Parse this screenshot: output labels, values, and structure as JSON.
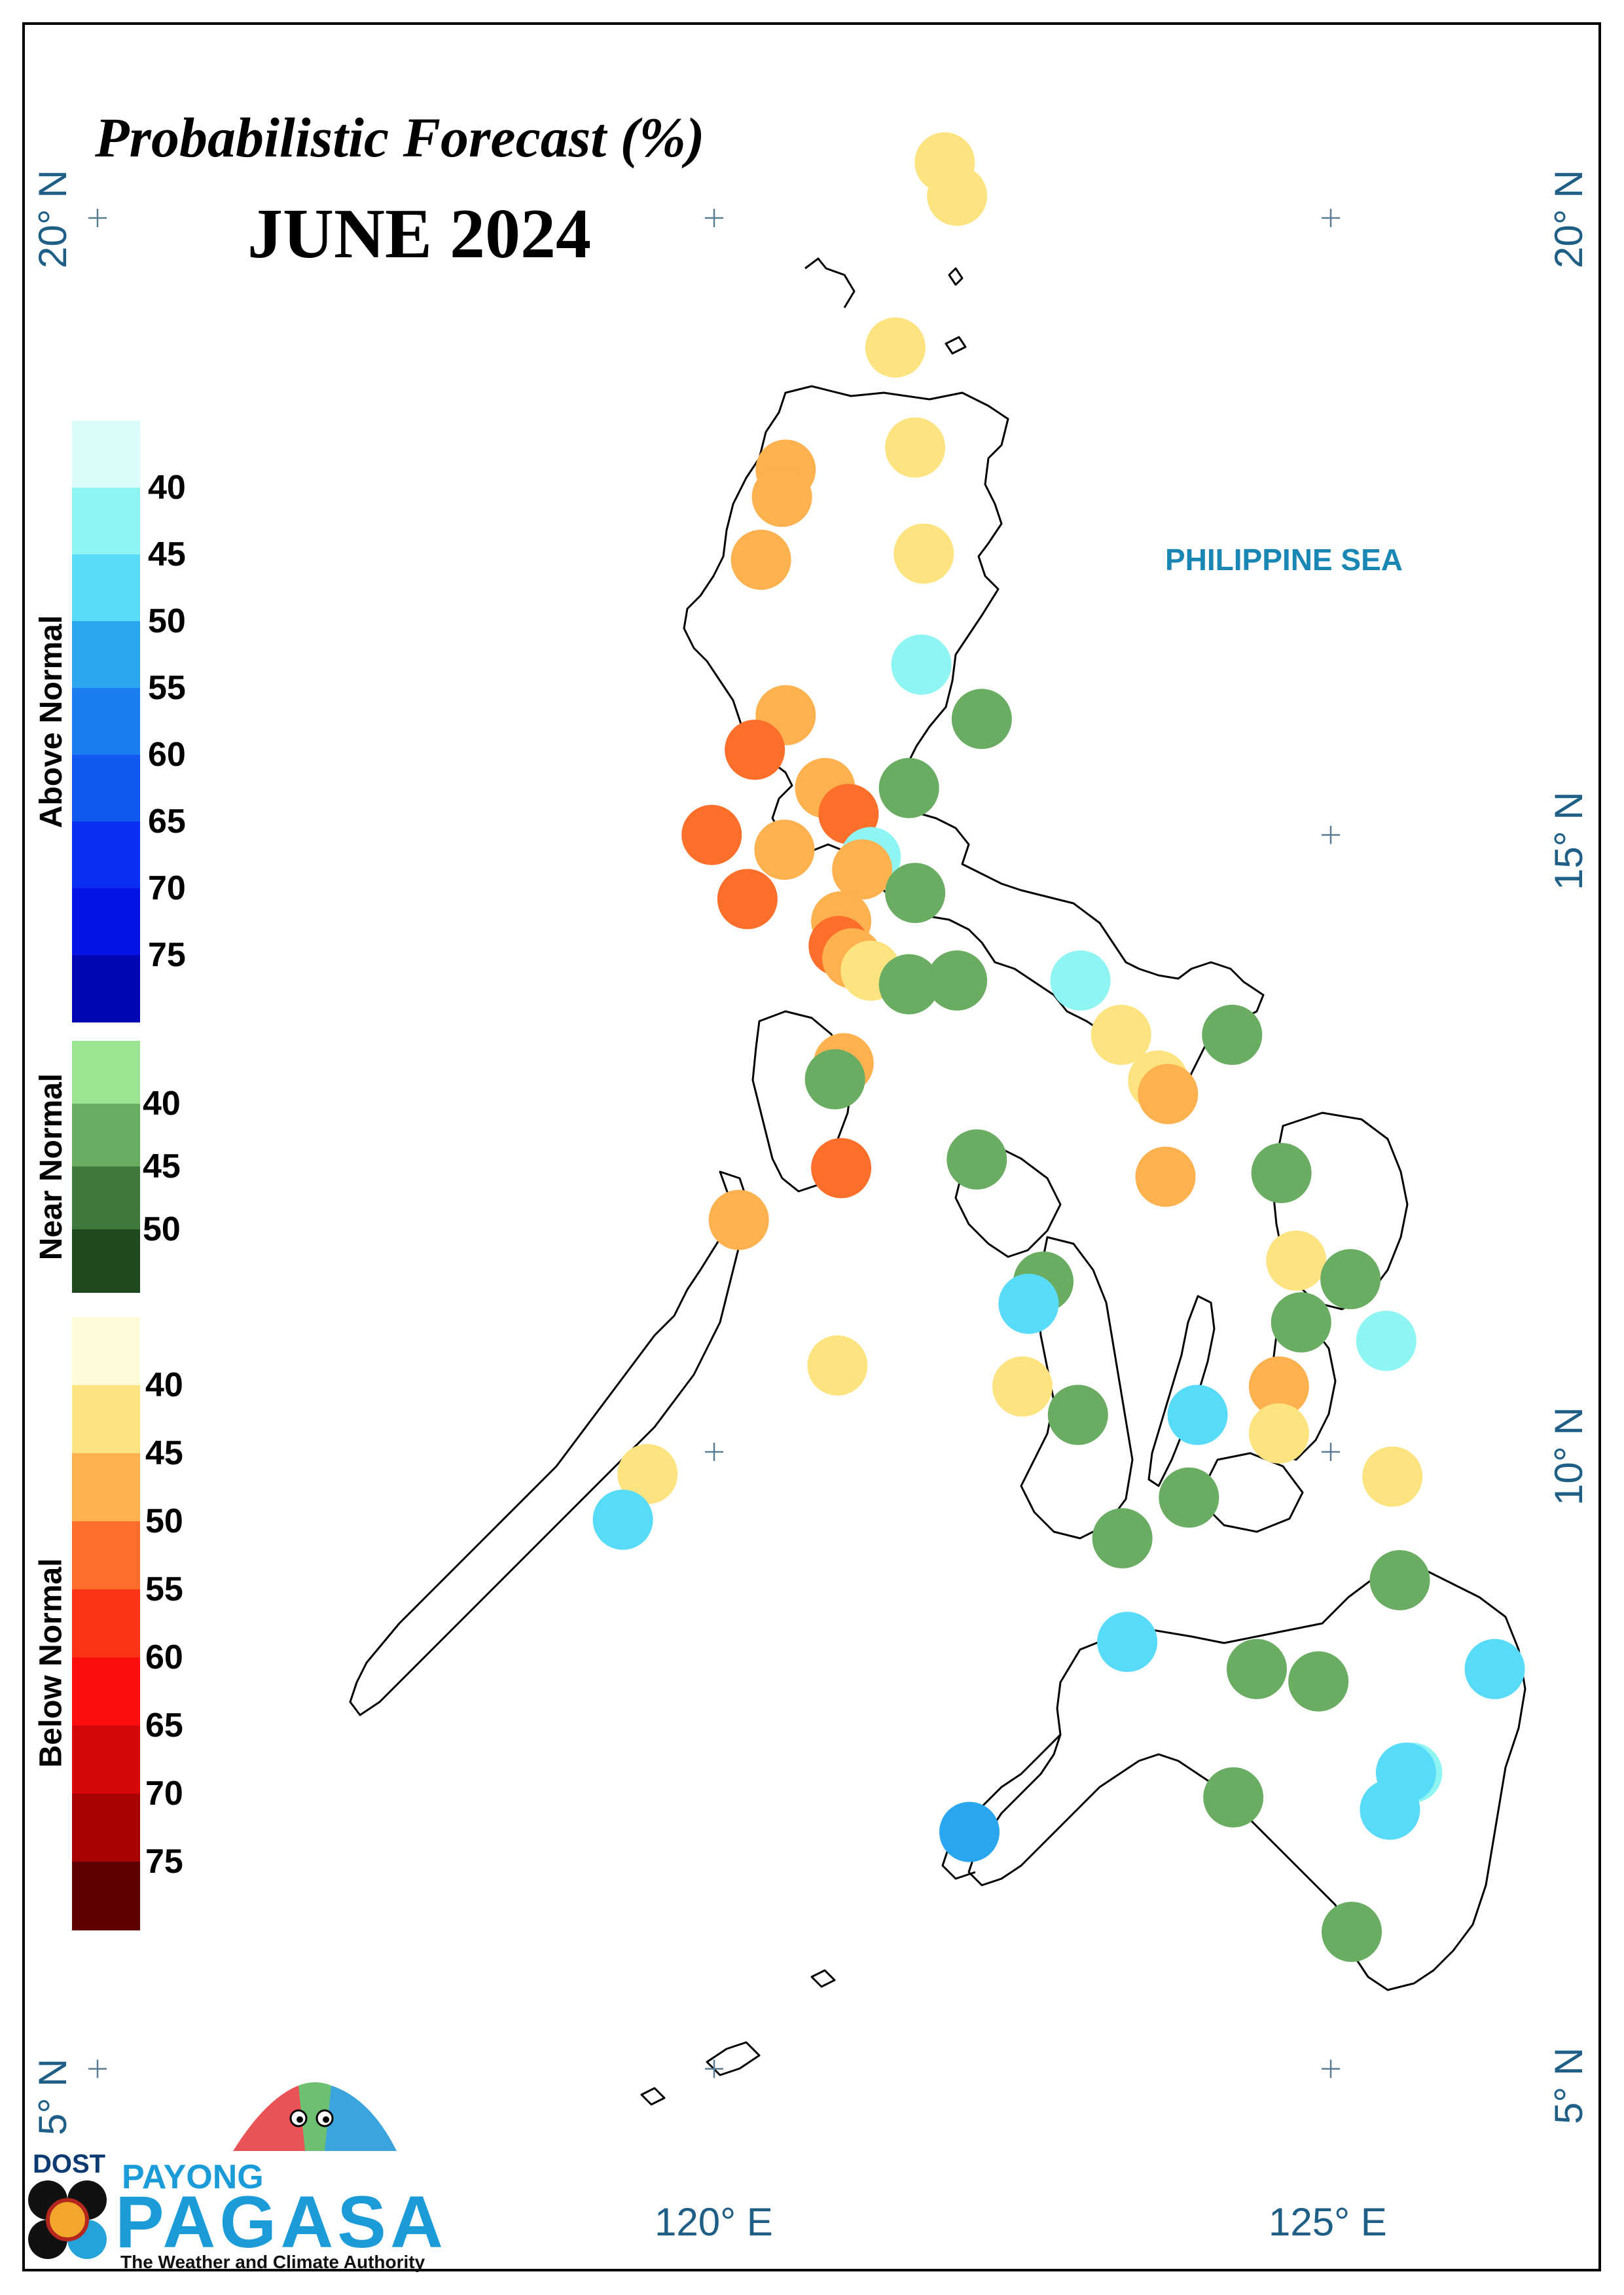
{
  "title": "Probabilistic Forecast (%)",
  "subtitle": "JUNE 2024",
  "sea_label": "PHILIPPINE SEA",
  "lat_labels": [
    "20° N",
    "15° N",
    "10° N",
    "5° N"
  ],
  "lon_labels": [
    "120° E",
    "125° E"
  ],
  "legend": {
    "above_normal": {
      "label": "Above Normal",
      "colors": [
        "#dcfcfb",
        "#8ef5f2",
        "#58dbf8",
        "#2aa6f0",
        "#1a7ef2",
        "#1158f0",
        "#0a2ef2",
        "#0414e6",
        "#0007b2"
      ],
      "ticks": [
        "40",
        "45",
        "50",
        "55",
        "60",
        "65",
        "70",
        "75"
      ]
    },
    "near_normal": {
      "label": "Near Normal",
      "colors": [
        "#9be592",
        "#6aad62",
        "#3f783b",
        "#1f4a1f"
      ],
      "ticks": [
        "40",
        "45",
        "50"
      ]
    },
    "below_normal": {
      "label": "Below Normal",
      "colors": [
        "#fdfbd8",
        "#fde481",
        "#fdb14f",
        "#fb6f2a",
        "#fd3417",
        "#fd0d0c",
        "#d4070a",
        "#a90205",
        "#5c0000"
      ],
      "ticks": [
        "40",
        "45",
        "50",
        "55",
        "60",
        "65",
        "70",
        "75"
      ]
    }
  },
  "stations": [
    {
      "lon": 121.87,
      "lat": 20.45,
      "cat": "below",
      "prob": 40
    },
    {
      "lon": 121.97,
      "lat": 20.18,
      "cat": "below",
      "prob": 40
    },
    {
      "lon": 121.47,
      "lat": 18.95,
      "cat": "below",
      "prob": 40
    },
    {
      "lon": 121.63,
      "lat": 18.14,
      "cat": "below",
      "prob": 40
    },
    {
      "lon": 120.58,
      "lat": 17.96,
      "cat": "below",
      "prob": 45
    },
    {
      "lon": 120.55,
      "lat": 17.74,
      "cat": "below",
      "prob": 45
    },
    {
      "lon": 120.38,
      "lat": 17.23,
      "cat": "below",
      "prob": 45
    },
    {
      "lon": 121.7,
      "lat": 17.28,
      "cat": "below",
      "prob": 40
    },
    {
      "lon": 121.68,
      "lat": 16.38,
      "cat": "above",
      "prob": 40
    },
    {
      "lon": 120.58,
      "lat": 15.97,
      "cat": "below",
      "prob": 45
    },
    {
      "lon": 122.17,
      "lat": 15.94,
      "cat": "near",
      "prob": 40
    },
    {
      "lon": 120.33,
      "lat": 15.69,
      "cat": "below",
      "prob": 50
    },
    {
      "lon": 120.9,
      "lat": 15.38,
      "cat": "below",
      "prob": 45
    },
    {
      "lon": 121.58,
      "lat": 15.38,
      "cat": "near",
      "prob": 40
    },
    {
      "lon": 121.09,
      "lat": 15.17,
      "cat": "below",
      "prob": 50
    },
    {
      "lon": 119.98,
      "lat": 15.0,
      "cat": "below",
      "prob": 50
    },
    {
      "lon": 120.57,
      "lat": 14.88,
      "cat": "below",
      "prob": 45
    },
    {
      "lon": 121.27,
      "lat": 14.82,
      "cat": "above",
      "prob": 40
    },
    {
      "lon": 121.2,
      "lat": 14.72,
      "cat": "below",
      "prob": 45
    },
    {
      "lon": 120.27,
      "lat": 14.48,
      "cat": "below",
      "prob": 50
    },
    {
      "lon": 121.63,
      "lat": 14.53,
      "cat": "near",
      "prob": 40
    },
    {
      "lon": 121.03,
      "lat": 14.3,
      "cat": "below",
      "prob": 45
    },
    {
      "lon": 121.01,
      "lat": 14.1,
      "cat": "below",
      "prob": 50
    },
    {
      "lon": 121.12,
      "lat": 14.0,
      "cat": "below",
      "prob": 45
    },
    {
      "lon": 121.27,
      "lat": 13.9,
      "cat": "below",
      "prob": 40
    },
    {
      "lon": 121.58,
      "lat": 13.79,
      "cat": "near",
      "prob": 40
    },
    {
      "lon": 121.97,
      "lat": 13.82,
      "cat": "near",
      "prob": 40
    },
    {
      "lon": 122.97,
      "lat": 13.82,
      "cat": "above",
      "prob": 40
    },
    {
      "lon": 121.05,
      "lat": 13.15,
      "cat": "below",
      "prob": 45
    },
    {
      "lon": 123.3,
      "lat": 13.38,
      "cat": "below",
      "prob": 40
    },
    {
      "lon": 124.2,
      "lat": 13.38,
      "cat": "near",
      "prob": 40
    },
    {
      "lon": 120.98,
      "lat": 13.02,
      "cat": "near",
      "prob": 40
    },
    {
      "lon": 123.6,
      "lat": 13.01,
      "cat": "below",
      "prob": 40
    },
    {
      "lon": 123.68,
      "lat": 12.9,
      "cat": "below",
      "prob": 45
    },
    {
      "lon": 122.13,
      "lat": 12.37,
      "cat": "near",
      "prob": 40
    },
    {
      "lon": 124.6,
      "lat": 12.26,
      "cat": "near",
      "prob": 40
    },
    {
      "lon": 121.03,
      "lat": 12.3,
      "cat": "below",
      "prob": 50
    },
    {
      "lon": 123.66,
      "lat": 12.23,
      "cat": "below",
      "prob": 45
    },
    {
      "lon": 120.2,
      "lat": 11.88,
      "cat": "below",
      "prob": 45
    },
    {
      "lon": 124.72,
      "lat": 11.55,
      "cat": "below",
      "prob": 40
    },
    {
      "lon": 125.16,
      "lat": 11.4,
      "cat": "near",
      "prob": 40
    },
    {
      "lon": 122.67,
      "lat": 11.38,
      "cat": "near",
      "prob": 40
    },
    {
      "lon": 122.55,
      "lat": 11.2,
      "cat": "above",
      "prob": 45
    },
    {
      "lon": 124.76,
      "lat": 11.05,
      "cat": "near",
      "prob": 40
    },
    {
      "lon": 125.45,
      "lat": 10.9,
      "cat": "above",
      "prob": 40
    },
    {
      "lon": 121.0,
      "lat": 10.7,
      "cat": "below",
      "prob": 40
    },
    {
      "lon": 122.5,
      "lat": 10.53,
      "cat": "below",
      "prob": 40
    },
    {
      "lon": 124.58,
      "lat": 10.53,
      "cat": "below",
      "prob": 45
    },
    {
      "lon": 122.95,
      "lat": 10.3,
      "cat": "near",
      "prob": 40
    },
    {
      "lon": 123.92,
      "lat": 10.3,
      "cat": "above",
      "prob": 45
    },
    {
      "lon": 124.58,
      "lat": 10.15,
      "cat": "below",
      "prob": 40
    },
    {
      "lon": 119.46,
      "lat": 9.82,
      "cat": "below",
      "prob": 40
    },
    {
      "lon": 125.5,
      "lat": 9.8,
      "cat": "below",
      "prob": 40
    },
    {
      "lon": 123.85,
      "lat": 9.63,
      "cat": "near",
      "prob": 40
    },
    {
      "lon": 119.26,
      "lat": 9.45,
      "cat": "above",
      "prob": 45
    },
    {
      "lon": 123.31,
      "lat": 9.3,
      "cat": "near",
      "prob": 40
    },
    {
      "lon": 125.56,
      "lat": 8.96,
      "cat": "near",
      "prob": 40
    },
    {
      "lon": 123.35,
      "lat": 8.46,
      "cat": "above",
      "prob": 45
    },
    {
      "lon": 126.33,
      "lat": 8.24,
      "cat": "above",
      "prob": 45
    },
    {
      "lon": 124.4,
      "lat": 8.24,
      "cat": "near",
      "prob": 40
    },
    {
      "lon": 124.9,
      "lat": 8.14,
      "cat": "near",
      "prob": 40
    },
    {
      "lon": 125.66,
      "lat": 7.4,
      "cat": "above",
      "prob": 40
    },
    {
      "lon": 125.61,
      "lat": 7.4,
      "cat": "above",
      "prob": 45
    },
    {
      "lon": 124.21,
      "lat": 7.2,
      "cat": "near",
      "prob": 40
    },
    {
      "lon": 125.48,
      "lat": 7.1,
      "cat": "above",
      "prob": 45
    },
    {
      "lon": 122.07,
      "lat": 6.92,
      "cat": "above",
      "prob": 50
    },
    {
      "lon": 125.17,
      "lat": 6.11,
      "cat": "near",
      "prob": 40
    }
  ],
  "logo": {
    "agency": "DOST",
    "line1": "PAYONG",
    "line2": "PAGASA",
    "tagline": "The Weather and Climate Authority"
  }
}
